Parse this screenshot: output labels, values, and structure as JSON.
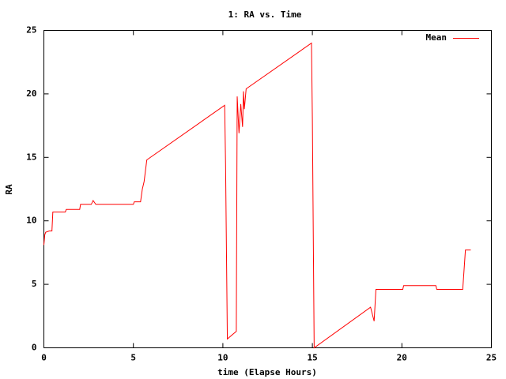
{
  "chart_data": {
    "type": "line",
    "title": "1: RA vs. Time",
    "x_label": "time (Elapse Hours)",
    "y_label": "RA",
    "x": [
      0,
      0.05,
      0.1,
      0.3,
      0.45,
      0.5,
      1.2,
      1.25,
      2.0,
      2.05,
      2.65,
      2.75,
      2.9,
      5.0,
      5.05,
      5.4,
      5.5,
      5.6,
      5.75,
      10.1,
      10.15,
      10.25,
      10.75,
      10.8,
      10.9,
      11.0,
      11.1,
      11.15,
      11.2,
      11.3,
      14.95,
      15.0,
      15.1,
      18.25,
      18.45,
      18.55,
      20.05,
      20.1,
      21.9,
      21.95,
      23.4,
      23.55,
      23.85
    ],
    "series": [
      {
        "name": "Mean",
        "color": "#ff0000",
        "values": [
          8.1,
          8.9,
          9.1,
          9.2,
          9.2,
          10.7,
          10.7,
          10.9,
          10.9,
          11.3,
          11.3,
          11.6,
          11.3,
          11.3,
          11.5,
          11.5,
          12.5,
          13.1,
          14.8,
          19.1,
          14.5,
          0.7,
          1.3,
          19.8,
          16.9,
          19.2,
          17.4,
          20.2,
          18.8,
          20.4,
          24.0,
          18.0,
          0.0,
          3.2,
          2.1,
          4.6,
          4.6,
          4.9,
          4.9,
          4.6,
          4.6,
          7.7,
          7.7
        ]
      }
    ],
    "xlim": [
      0,
      25
    ],
    "xticks": [
      0,
      5,
      10,
      15,
      20,
      25
    ],
    "ylim": [
      0,
      25
    ],
    "yticks": [
      0,
      5,
      10,
      15,
      20,
      25
    ],
    "legend": "top-right",
    "grid": false
  }
}
